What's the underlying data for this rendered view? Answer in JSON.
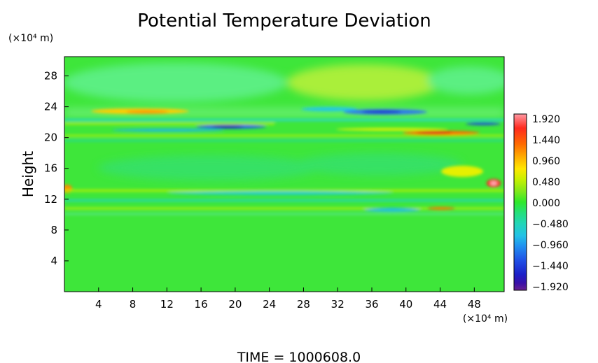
{
  "chart_data": {
    "type": "heatmap",
    "title": "Potential Temperature Deviation",
    "xlabel": "",
    "ylabel": "Height",
    "x_unit_label": "(×10⁴ m)",
    "y_unit_label": "(×10⁴ m)",
    "xlim": [
      0,
      51.5
    ],
    "ylim": [
      0,
      30.5
    ],
    "x_ticks": [
      4,
      8,
      12,
      16,
      20,
      24,
      28,
      32,
      36,
      40,
      44,
      48
    ],
    "x_tick_labels": [
      "4",
      "8",
      "12",
      "16",
      "20",
      "24",
      "28",
      "32",
      "36",
      "40",
      "44",
      "48"
    ],
    "y_ticks": [
      4,
      8,
      12,
      16,
      20,
      24,
      28
    ],
    "y_tick_labels": [
      "4",
      "8",
      "12",
      "16",
      "20",
      "24",
      "28"
    ],
    "colorbar": {
      "min": -1.92,
      "max": 1.92,
      "tick_values": [
        1.92,
        1.44,
        0.96,
        0.48,
        0.0,
        -0.48,
        -0.96,
        -1.44,
        -1.92
      ],
      "tick_labels": [
        "1.920",
        "1.440",
        "0.960",
        "0.480",
        "0.000",
        "−0.480",
        "−0.960",
        "−1.440",
        "−1.920"
      ],
      "colors_high_to_low": [
        "#ff9aa4",
        "#ff2a1e",
        "#ff6a00",
        "#ffb300",
        "#ffe600",
        "#c8f000",
        "#7ee81a",
        "#2ee82a",
        "#24e07a",
        "#22d6b6",
        "#22c2e6",
        "#2090f0",
        "#2050e6",
        "#1c20c8",
        "#3a10a8",
        "#6a2090"
      ]
    },
    "features": [
      {
        "x": 10,
        "y": 22.8,
        "value": 0.6
      },
      {
        "x": 18,
        "y": 21.0,
        "value": -1.4
      },
      {
        "x": 36,
        "y": 22.5,
        "value": -1.0
      },
      {
        "x": 42,
        "y": 20.1,
        "value": 1.5
      },
      {
        "x": 50,
        "y": 13.5,
        "value": 1.9
      },
      {
        "x": 0.5,
        "y": 13.2,
        "value": 1.2
      },
      {
        "x": 12,
        "y": 27.0,
        "value": 0.15
      },
      {
        "x": 34,
        "y": 26.5,
        "value": 0.25
      }
    ],
    "footer": "TIME  =  1000608.0"
  }
}
